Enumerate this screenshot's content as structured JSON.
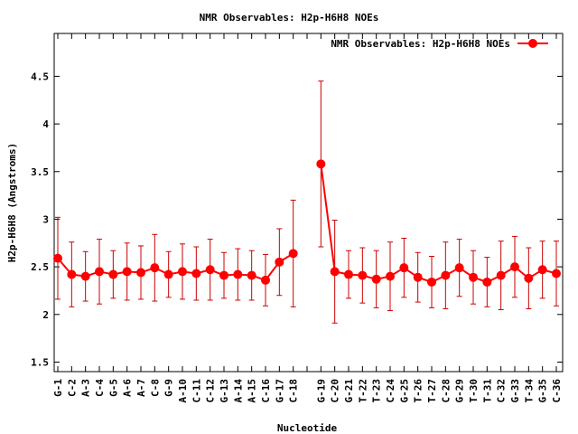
{
  "chart_data": {
    "type": "line",
    "title": "NMR Observables: H2p-H6H8 NOEs",
    "xlabel": "Nucleotide",
    "ylabel": "H2p-H6H8 (Angstroms)",
    "ylim": [
      1.4,
      4.95
    ],
    "yticks": [
      1.5,
      2,
      2.5,
      3,
      3.5,
      4,
      4.5
    ],
    "ytick_labels": [
      "1.5",
      "2",
      "2.5",
      "3",
      "3.5",
      "4",
      "4.5"
    ],
    "legend_position": "top-right",
    "grid": false,
    "color": "#ff0000",
    "errorbar_color": "#cc0000",
    "categories": [
      "G-1",
      "C-2",
      "A-3",
      "C-4",
      "G-5",
      "A-6",
      "A-7",
      "C-8",
      "G-9",
      "A-10",
      "C-11",
      "C-12",
      "G-13",
      "A-14",
      "A-15",
      "C-16",
      "G-17",
      "C-18",
      "",
      "G-19",
      "C-20",
      "G-21",
      "T-22",
      "T-23",
      "C-24",
      "G-25",
      "T-26",
      "T-27",
      "C-28",
      "G-29",
      "T-30",
      "T-31",
      "C-32",
      "G-33",
      "T-34",
      "G-35",
      "C-36"
    ],
    "series": [
      {
        "name": "NMR Observables: H2p-H6H8 NOEs",
        "values": [
          2.59,
          2.42,
          2.4,
          2.45,
          2.42,
          2.45,
          2.44,
          2.49,
          2.42,
          2.45,
          2.43,
          2.47,
          2.41,
          2.42,
          2.41,
          2.36,
          2.55,
          2.64,
          null,
          3.58,
          2.45,
          2.42,
          2.41,
          2.37,
          2.4,
          2.49,
          2.39,
          2.34,
          2.41,
          2.49,
          2.39,
          2.34,
          2.41,
          2.5,
          2.38,
          2.47,
          2.43
        ],
        "error": [
          0.43,
          0.34,
          0.26,
          0.34,
          0.25,
          0.3,
          0.28,
          0.35,
          0.24,
          0.29,
          0.28,
          0.32,
          0.24,
          0.27,
          0.26,
          0.27,
          0.35,
          0.56,
          null,
          0.87,
          0.54,
          0.25,
          0.29,
          0.3,
          0.36,
          0.31,
          0.26,
          0.27,
          0.35,
          0.3,
          0.28,
          0.26,
          0.36,
          0.32,
          0.32,
          0.3,
          0.34
        ]
      }
    ]
  }
}
